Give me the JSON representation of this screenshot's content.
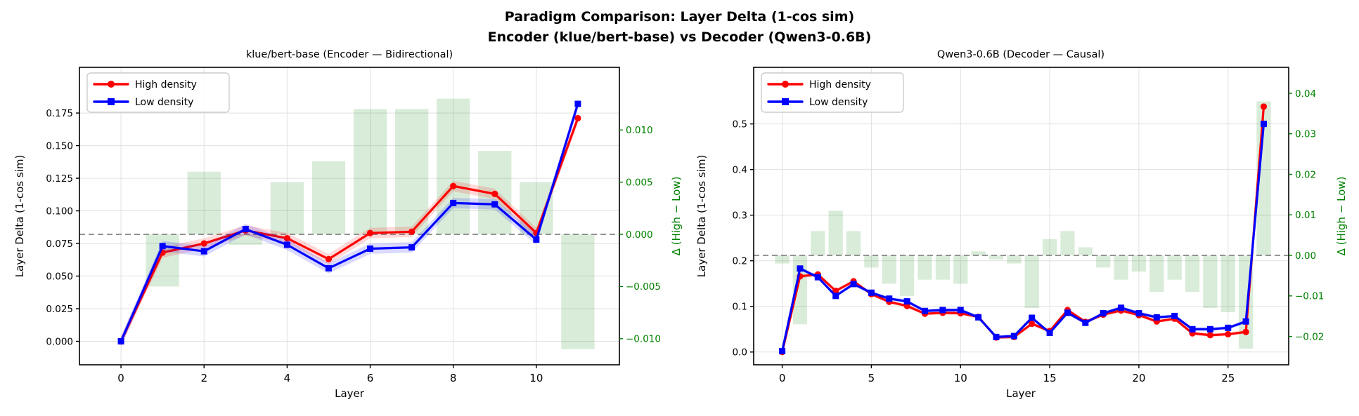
{
  "header": {
    "title_line1": "Paradigm Comparison: Layer Delta (1-cos sim)",
    "title_line2": "Encoder (klue/bert-base) vs Decoder (Qwen3-0.6B)"
  },
  "legend": {
    "items": [
      {
        "label": "High density",
        "color": "#ff0000",
        "marker": "circle"
      },
      {
        "label": "Low density",
        "color": "#0000ff",
        "marker": "square"
      }
    ]
  },
  "colors": {
    "high": "#ff0000",
    "low": "#0000ff",
    "delta_bar": "#008000",
    "secondary_axis": "#008000",
    "zero_line": "#808080",
    "grid": "#e0e0e0",
    "axis_text": "#000000"
  },
  "chart_data": [
    {
      "type": "line+bar",
      "title": "klue/bert-base (Encoder — Bidirectional)",
      "xlabel": "Layer",
      "ylabel": "Layer Delta (1-cos sim)",
      "y2label": "Δ (High − Low)",
      "layers": [
        0,
        1,
        2,
        3,
        4,
        5,
        6,
        7,
        8,
        9,
        10,
        11
      ],
      "series": [
        {
          "name": "High density",
          "color": "#ff0000",
          "marker": "circle",
          "values": [
            0.0,
            0.068,
            0.075,
            0.085,
            0.079,
            0.063,
            0.083,
            0.084,
            0.119,
            0.113,
            0.083,
            0.171
          ]
        },
        {
          "name": "Low density",
          "color": "#0000ff",
          "marker": "square",
          "values": [
            0.0,
            0.073,
            0.069,
            0.086,
            0.074,
            0.056,
            0.071,
            0.072,
            0.106,
            0.105,
            0.078,
            0.182
          ]
        }
      ],
      "delta_high_minus_low": [
        0.0,
        -0.005,
        0.006,
        -0.001,
        0.005,
        0.007,
        0.012,
        0.012,
        0.013,
        0.008,
        0.005,
        -0.011
      ],
      "xticks": [
        0,
        2,
        4,
        6,
        8,
        10
      ],
      "yticks": {
        "values": [
          0.0,
          0.025,
          0.05,
          0.075,
          0.1,
          0.125,
          0.15,
          0.175
        ],
        "labels": [
          "0.000",
          "0.025",
          "0.050",
          "0.075",
          "0.100",
          "0.125",
          "0.150",
          "0.175"
        ]
      },
      "y2ticks": {
        "values": [
          0.01,
          0.005,
          0.0,
          -0.005,
          -0.01
        ],
        "labels": [
          "0.010",
          "0.005",
          "0.000",
          "−0.005",
          "−0.010"
        ]
      },
      "xlim": [
        -1.0,
        12.0
      ],
      "ylim": [
        -0.018,
        0.21
      ],
      "y2lim": [
        -0.0125,
        0.016
      ],
      "zero_line_y2": 0.0,
      "band_halfwidth": 0.004,
      "grid": true,
      "legend_position": "upper-left"
    },
    {
      "type": "line+bar",
      "title": "Qwen3-0.6B (Decoder — Causal)",
      "xlabel": "Layer",
      "ylabel": "Layer Delta (1-cos sim)",
      "y2label": "Δ (High − Low)",
      "layers": [
        0,
        1,
        2,
        3,
        4,
        5,
        6,
        7,
        8,
        9,
        10,
        11,
        12,
        13,
        14,
        15,
        16,
        17,
        18,
        19,
        20,
        21,
        22,
        23,
        24,
        25,
        26,
        27
      ],
      "series": [
        {
          "name": "High density",
          "color": "#ff0000",
          "marker": "circle",
          "values": [
            0.0,
            0.166,
            0.17,
            0.134,
            0.155,
            0.127,
            0.11,
            0.101,
            0.084,
            0.086,
            0.085,
            0.077,
            0.032,
            0.033,
            0.062,
            0.046,
            0.092,
            0.066,
            0.082,
            0.091,
            0.081,
            0.067,
            0.073,
            0.041,
            0.037,
            0.039,
            0.044,
            0.538
          ]
        },
        {
          "name": "Low density",
          "color": "#0000ff",
          "marker": "square",
          "values": [
            0.002,
            0.183,
            0.164,
            0.123,
            0.149,
            0.13,
            0.117,
            0.111,
            0.09,
            0.092,
            0.092,
            0.076,
            0.033,
            0.035,
            0.075,
            0.042,
            0.086,
            0.064,
            0.085,
            0.097,
            0.085,
            0.076,
            0.079,
            0.05,
            0.05,
            0.053,
            0.067,
            0.5
          ]
        }
      ],
      "delta_high_minus_low": [
        -0.002,
        -0.017,
        0.006,
        0.011,
        0.006,
        -0.003,
        -0.007,
        -0.01,
        -0.006,
        -0.006,
        -0.007,
        0.001,
        -0.001,
        -0.002,
        -0.013,
        0.004,
        0.006,
        0.002,
        -0.003,
        -0.006,
        -0.004,
        -0.009,
        -0.006,
        -0.009,
        -0.013,
        -0.014,
        -0.023,
        0.038
      ],
      "xticks": [
        0,
        5,
        10,
        15,
        20,
        25
      ],
      "yticks": {
        "values": [
          0.0,
          0.1,
          0.2,
          0.3,
          0.4,
          0.5
        ],
        "labels": [
          "0.0",
          "0.1",
          "0.2",
          "0.3",
          "0.4",
          "0.5"
        ]
      },
      "y2ticks": {
        "values": [
          0.04,
          0.03,
          0.02,
          0.01,
          0.0,
          -0.01,
          -0.02
        ],
        "labels": [
          "0.04",
          "0.03",
          "0.02",
          "0.01",
          "0.00",
          "−0.01",
          "−0.02"
        ]
      },
      "xlim": [
        -1.6,
        28.4
      ],
      "ylim": [
        -0.028,
        0.624
      ],
      "y2lim": [
        -0.027,
        0.0464
      ],
      "zero_line_y2": 0.0,
      "band_halfwidth": 0.004,
      "grid": true,
      "legend_position": "upper-left"
    }
  ]
}
